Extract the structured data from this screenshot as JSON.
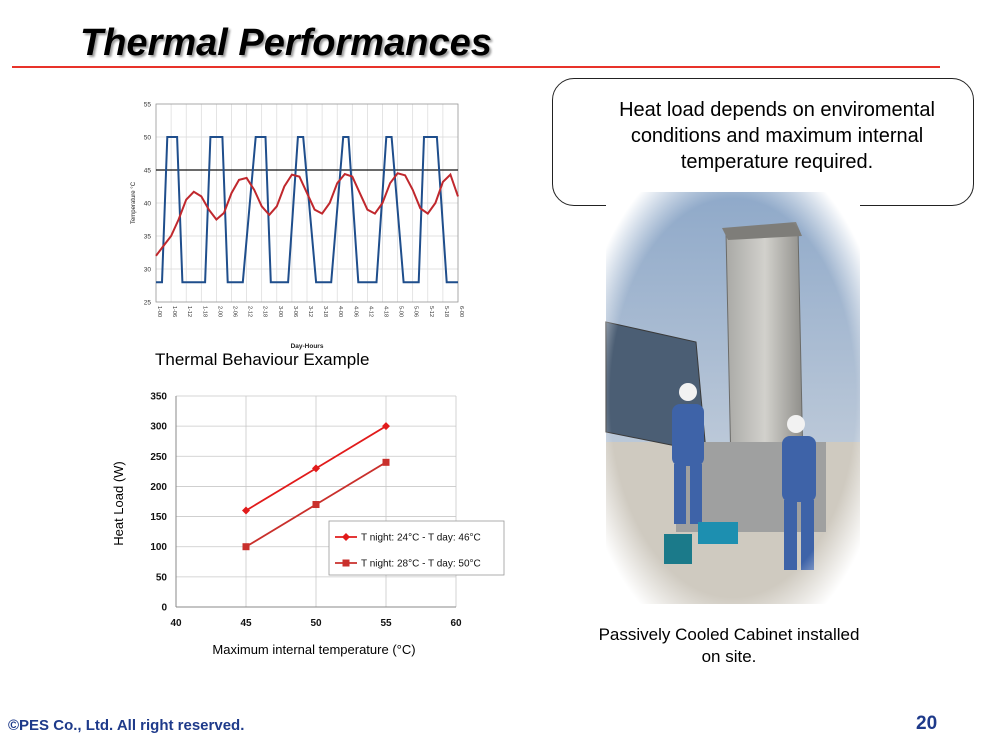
{
  "slide": {
    "title": "Thermal Performances",
    "callout_text": "Heat load depends on enviromental conditions and maximum internal temperature required.",
    "chart1_caption": "Thermal Behaviour Example",
    "photo_caption": "Passively   Cooled     Cabinet installed on site.",
    "footer_copyright": "©PES Co., Ltd. All right reserved.",
    "page_number": "20"
  },
  "colors": {
    "title_rule": "#e8332a",
    "footer": "#1e3a8a",
    "series_blue": "#1f4e8c",
    "series_red": "#c0282d",
    "series_red2": "#c9302c",
    "series_red1": "#e11b1b"
  },
  "chart_data": [
    {
      "type": "line",
      "xlabel": "Day-Hours",
      "ylabel": "Temperature °C",
      "ylim": [
        25,
        55
      ],
      "yticks": [
        25,
        30,
        35,
        40,
        45,
        50,
        55
      ],
      "xticks": [
        "1-00",
        "1-06",
        "1-12",
        "1-18",
        "2-00",
        "2-06",
        "2-12",
        "2-18",
        "3-00",
        "3-06",
        "3-12",
        "3-18",
        "4-00",
        "4-06",
        "4-12",
        "4-18",
        "5-00",
        "5-06",
        "5-12",
        "5-18",
        "6-00"
      ],
      "grid": true,
      "reference_line": 45,
      "series": [
        {
          "color": "#1f4e8c",
          "x": [
            0,
            0.1,
            0.4,
            0.75,
            1.4,
            1.75,
            2.6,
            3.25,
            3.6,
            4.4,
            4.75,
            5.4,
            5.75,
            6.6,
            7.25,
            7.6,
            8.4,
            8.75,
            9.4,
            9.75,
            10.6,
            11.25,
            11.6,
            12.4,
            12.75,
            13.4,
            13.75,
            14.6,
            15.25,
            15.6,
            16.4,
            16.75,
            17.4,
            17.75,
            18.6,
            19.25,
            19.6,
            20
          ],
          "y": [
            28,
            28,
            28,
            50,
            50,
            28,
            28,
            28,
            50,
            50,
            28,
            28,
            28,
            50,
            50,
            28,
            28,
            28,
            50,
            50,
            28,
            28,
            28,
            50,
            50,
            28,
            28,
            28,
            50,
            50,
            28,
            28,
            28,
            50,
            50,
            28,
            28,
            28
          ]
        },
        {
          "color": "#c0282d",
          "x": [
            0,
            0.5,
            1.0,
            1.5,
            2.0,
            2.5,
            3.0,
            3.5,
            4.0,
            4.5,
            5.0,
            5.5,
            6.0,
            6.5,
            7.0,
            7.5,
            8.0,
            8.5,
            9.0,
            9.5,
            10.0,
            10.5,
            11.0,
            11.5,
            12.0,
            12.5,
            13.0,
            13.5,
            14.0,
            14.5,
            15.0,
            15.5,
            16.0,
            16.5,
            17.0,
            17.5,
            18.0,
            18.5,
            19.0,
            19.5,
            20.0
          ],
          "y": [
            32,
            33.5,
            35,
            37.5,
            40.5,
            41.7,
            41,
            39,
            37.5,
            38.5,
            41.5,
            43.5,
            43.8,
            42,
            39.5,
            38.2,
            39.5,
            42.5,
            44.3,
            44,
            41.5,
            39,
            38.4,
            40,
            43,
            44.4,
            44,
            41.5,
            39,
            38.4,
            40,
            43,
            44.5,
            44.2,
            42,
            39.2,
            38.4,
            40,
            43.2,
            44.3,
            41
          ]
        }
      ]
    },
    {
      "type": "line",
      "xlabel": "Maximum internal temperature (°C)",
      "ylabel": "Heat Load (W)",
      "xlim": [
        40,
        60
      ],
      "ylim": [
        0,
        350
      ],
      "xticks": [
        40,
        45,
        50,
        55,
        60
      ],
      "yticks": [
        0,
        50,
        100,
        150,
        200,
        250,
        300,
        350
      ],
      "grid": true,
      "legend": "bottom-right",
      "series": [
        {
          "name": "T night: 24°C - T day: 46°C",
          "color": "#e11b1b",
          "marker": "diamond",
          "x": [
            45,
            50,
            55
          ],
          "y": [
            160,
            230,
            300
          ]
        },
        {
          "name": "T night: 28°C - T day: 50°C",
          "color": "#c9302c",
          "marker": "square",
          "x": [
            45,
            50,
            55
          ],
          "y": [
            100,
            170,
            240
          ]
        }
      ]
    }
  ]
}
